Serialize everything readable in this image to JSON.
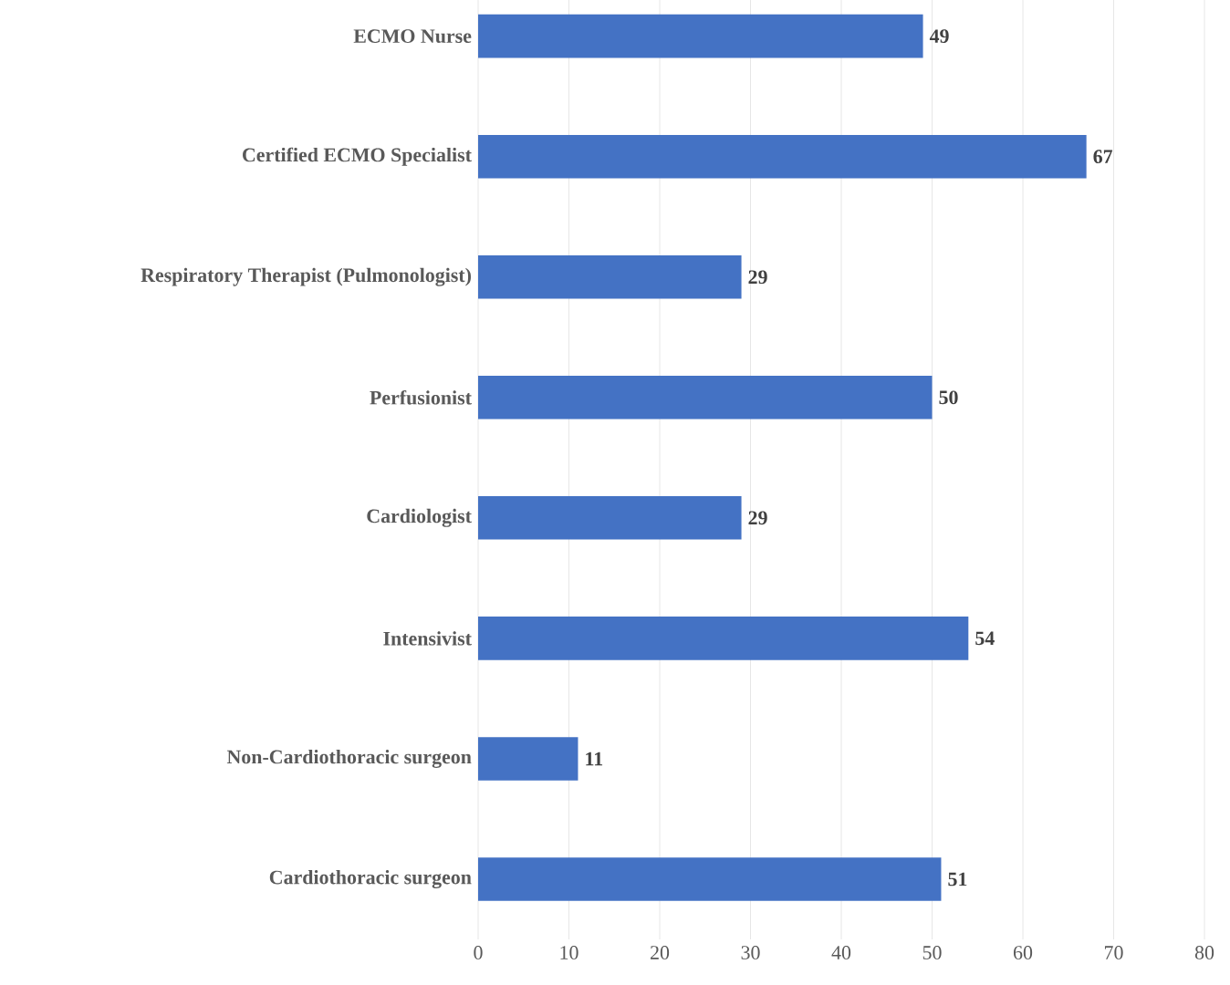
{
  "chart_data": {
    "type": "bar",
    "orientation": "horizontal",
    "categories": [
      "ECMO Nurse",
      "Certified ECMO Specialist",
      "Respiratory Therapist (Pulmonologist)",
      "Perfusionist",
      "Cardiologist",
      "Intensivist",
      "Non-Cardiothoracic surgeon",
      "Cardiothoracic surgeon"
    ],
    "values": [
      49,
      67,
      29,
      50,
      29,
      54,
      11,
      51
    ],
    "color": "#4472c4",
    "xlim": [
      0,
      80
    ],
    "xticks": [
      0,
      10,
      20,
      30,
      40,
      50,
      60,
      70,
      80
    ],
    "grid": "x",
    "data_labels": true
  }
}
